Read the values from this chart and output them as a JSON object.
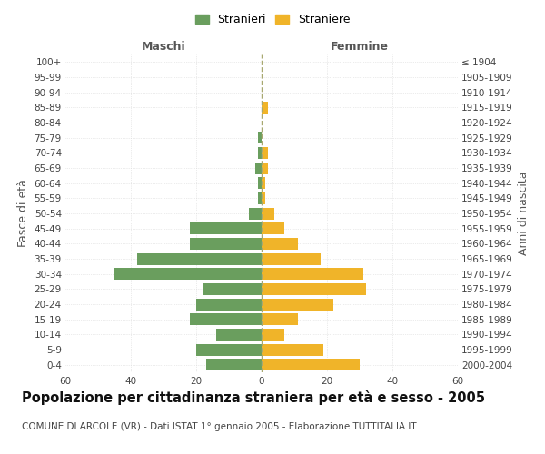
{
  "age_groups": [
    "0-4",
    "5-9",
    "10-14",
    "15-19",
    "20-24",
    "25-29",
    "30-34",
    "35-39",
    "40-44",
    "45-49",
    "50-54",
    "55-59",
    "60-64",
    "65-69",
    "70-74",
    "75-79",
    "80-84",
    "85-89",
    "90-94",
    "95-99",
    "100+"
  ],
  "birth_years": [
    "2000-2004",
    "1995-1999",
    "1990-1994",
    "1985-1989",
    "1980-1984",
    "1975-1979",
    "1970-1974",
    "1965-1969",
    "1960-1964",
    "1955-1959",
    "1950-1954",
    "1945-1949",
    "1940-1944",
    "1935-1939",
    "1930-1934",
    "1925-1929",
    "1920-1924",
    "1915-1919",
    "1910-1914",
    "1905-1909",
    "≤ 1904"
  ],
  "males": [
    17,
    20,
    14,
    22,
    20,
    18,
    45,
    38,
    22,
    22,
    4,
    1,
    1,
    2,
    1,
    1,
    0,
    0,
    0,
    0,
    0
  ],
  "females": [
    30,
    19,
    7,
    11,
    22,
    32,
    31,
    18,
    11,
    7,
    4,
    1,
    1,
    2,
    2,
    0,
    0,
    2,
    0,
    0,
    0
  ],
  "male_color": "#6a9e5e",
  "female_color": "#f0b429",
  "dashed_line_color": "#a8a870",
  "grid_color": "#d8d8d8",
  "background_color": "#ffffff",
  "title": "Popolazione per cittadinanza straniera per età e sesso - 2005",
  "subtitle": "COMUNE DI ARCOLE (VR) - Dati ISTAT 1° gennaio 2005 - Elaborazione TUTTITALIA.IT",
  "xlabel_left": "Maschi",
  "xlabel_right": "Femmine",
  "ylabel_left": "Fasce di età",
  "ylabel_right": "Anni di nascita",
  "legend_male": "Stranieri",
  "legend_female": "Straniere",
  "xlim": 60,
  "title_fontsize": 10.5,
  "subtitle_fontsize": 7.5,
  "tick_fontsize": 7.5,
  "label_fontsize": 9
}
